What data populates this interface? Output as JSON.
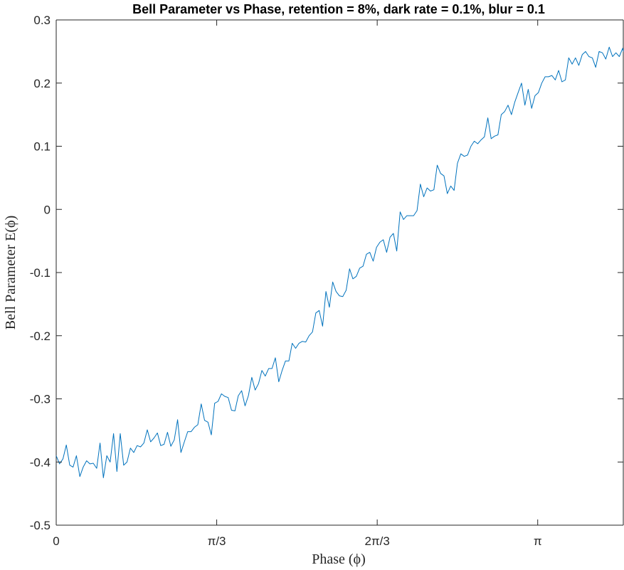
{
  "chart_data": {
    "type": "line",
    "title": "Bell Parameter vs Phase, retention = 8%, dark rate = 0.1%, blur = 0.1",
    "xlabel": "Phase (ϕ)",
    "ylabel": "Bell Parameter E(ϕ)",
    "xlim": [
      0,
      3.7
    ],
    "ylim": [
      -0.5,
      0.3
    ],
    "x_ticks": [
      {
        "value": 0,
        "label": "0"
      },
      {
        "value": 1.0472,
        "label": "π/3"
      },
      {
        "value": 2.0944,
        "label": "2π/3"
      },
      {
        "value": 3.1416,
        "label": "π"
      }
    ],
    "y_ticks": [
      {
        "value": 0.3,
        "label": "0.3"
      },
      {
        "value": 0.2,
        "label": "0.2"
      },
      {
        "value": 0.1,
        "label": "0.1"
      },
      {
        "value": 0,
        "label": "0"
      },
      {
        "value": -0.1,
        "label": "-0.1"
      },
      {
        "value": -0.2,
        "label": "-0.2"
      },
      {
        "value": -0.3,
        "label": "-0.3"
      },
      {
        "value": -0.4,
        "label": "-0.4"
      },
      {
        "value": -0.5,
        "label": "-0.5"
      }
    ],
    "grid": false,
    "series": [
      {
        "color": "#0072BD",
        "points": [
          [
            0.0,
            -0.39
          ],
          [
            0.022,
            -0.403
          ],
          [
            0.044,
            -0.395
          ],
          [
            0.066,
            -0.373
          ],
          [
            0.088,
            -0.405
          ],
          [
            0.11,
            -0.408
          ],
          [
            0.132,
            -0.39
          ],
          [
            0.154,
            -0.423
          ],
          [
            0.176,
            -0.408
          ],
          [
            0.198,
            -0.398
          ],
          [
            0.22,
            -0.403
          ],
          [
            0.242,
            -0.402
          ],
          [
            0.264,
            -0.41
          ],
          [
            0.286,
            -0.37
          ],
          [
            0.308,
            -0.425
          ],
          [
            0.33,
            -0.39
          ],
          [
            0.352,
            -0.4
          ],
          [
            0.374,
            -0.355
          ],
          [
            0.396,
            -0.415
          ],
          [
            0.418,
            -0.355
          ],
          [
            0.44,
            -0.405
          ],
          [
            0.462,
            -0.4
          ],
          [
            0.484,
            -0.378
          ],
          [
            0.506,
            -0.385
          ],
          [
            0.528,
            -0.374
          ],
          [
            0.55,
            -0.376
          ],
          [
            0.572,
            -0.37
          ],
          [
            0.594,
            -0.349
          ],
          [
            0.616,
            -0.368
          ],
          [
            0.638,
            -0.362
          ],
          [
            0.66,
            -0.354
          ],
          [
            0.682,
            -0.374
          ],
          [
            0.704,
            -0.372
          ],
          [
            0.726,
            -0.353
          ],
          [
            0.748,
            -0.375
          ],
          [
            0.77,
            -0.365
          ],
          [
            0.792,
            -0.333
          ],
          [
            0.814,
            -0.385
          ],
          [
            0.836,
            -0.368
          ],
          [
            0.858,
            -0.352
          ],
          [
            0.88,
            -0.352
          ],
          [
            0.902,
            -0.345
          ],
          [
            0.924,
            -0.341
          ],
          [
            0.946,
            -0.308
          ],
          [
            0.968,
            -0.334
          ],
          [
            0.99,
            -0.337
          ],
          [
            1.012,
            -0.357
          ],
          [
            1.034,
            -0.307
          ],
          [
            1.056,
            -0.304
          ],
          [
            1.078,
            -0.292
          ],
          [
            1.1,
            -0.296
          ],
          [
            1.122,
            -0.298
          ],
          [
            1.144,
            -0.318
          ],
          [
            1.166,
            -0.319
          ],
          [
            1.188,
            -0.295
          ],
          [
            1.21,
            -0.287
          ],
          [
            1.232,
            -0.311
          ],
          [
            1.254,
            -0.295
          ],
          [
            1.276,
            -0.266
          ],
          [
            1.298,
            -0.286
          ],
          [
            1.32,
            -0.276
          ],
          [
            1.342,
            -0.255
          ],
          [
            1.364,
            -0.264
          ],
          [
            1.386,
            -0.252
          ],
          [
            1.408,
            -0.252
          ],
          [
            1.43,
            -0.235
          ],
          [
            1.452,
            -0.273
          ],
          [
            1.474,
            -0.255
          ],
          [
            1.496,
            -0.24
          ],
          [
            1.518,
            -0.24
          ],
          [
            1.54,
            -0.212
          ],
          [
            1.562,
            -0.22
          ],
          [
            1.584,
            -0.212
          ],
          [
            1.606,
            -0.209
          ],
          [
            1.628,
            -0.21
          ],
          [
            1.65,
            -0.2
          ],
          [
            1.672,
            -0.194
          ],
          [
            1.694,
            -0.164
          ],
          [
            1.716,
            -0.16
          ],
          [
            1.738,
            -0.185
          ],
          [
            1.76,
            -0.13
          ],
          [
            1.782,
            -0.155
          ],
          [
            1.804,
            -0.115
          ],
          [
            1.826,
            -0.13
          ],
          [
            1.848,
            -0.137
          ],
          [
            1.87,
            -0.138
          ],
          [
            1.892,
            -0.128
          ],
          [
            1.914,
            -0.094
          ],
          [
            1.936,
            -0.11
          ],
          [
            1.958,
            -0.106
          ],
          [
            1.98,
            -0.093
          ],
          [
            2.002,
            -0.09
          ],
          [
            2.024,
            -0.071
          ],
          [
            2.046,
            -0.068
          ],
          [
            2.068,
            -0.082
          ],
          [
            2.09,
            -0.06
          ],
          [
            2.112,
            -0.052
          ],
          [
            2.134,
            -0.048
          ],
          [
            2.156,
            -0.068
          ],
          [
            2.178,
            -0.044
          ],
          [
            2.2,
            -0.038
          ],
          [
            2.222,
            -0.066
          ],
          [
            2.244,
            -0.004
          ],
          [
            2.266,
            -0.016
          ],
          [
            2.288,
            -0.01
          ],
          [
            2.31,
            -0.01
          ],
          [
            2.332,
            -0.01
          ],
          [
            2.354,
            -0.002
          ],
          [
            2.376,
            0.04
          ],
          [
            2.398,
            0.02
          ],
          [
            2.42,
            0.034
          ],
          [
            2.442,
            0.029
          ],
          [
            2.464,
            0.031
          ],
          [
            2.486,
            0.07
          ],
          [
            2.508,
            0.057
          ],
          [
            2.53,
            0.053
          ],
          [
            2.552,
            0.025
          ],
          [
            2.574,
            0.037
          ],
          [
            2.596,
            0.03
          ],
          [
            2.618,
            0.073
          ],
          [
            2.64,
            0.088
          ],
          [
            2.662,
            0.084
          ],
          [
            2.684,
            0.086
          ],
          [
            2.706,
            0.1
          ],
          [
            2.728,
            0.108
          ],
          [
            2.75,
            0.104
          ],
          [
            2.772,
            0.11
          ],
          [
            2.794,
            0.115
          ],
          [
            2.816,
            0.145
          ],
          [
            2.838,
            0.112
          ],
          [
            2.86,
            0.116
          ],
          [
            2.882,
            0.118
          ],
          [
            2.904,
            0.15
          ],
          [
            2.926,
            0.155
          ],
          [
            2.948,
            0.165
          ],
          [
            2.97,
            0.15
          ],
          [
            2.992,
            0.17
          ],
          [
            3.014,
            0.185
          ],
          [
            3.036,
            0.2
          ],
          [
            3.058,
            0.165
          ],
          [
            3.08,
            0.19
          ],
          [
            3.102,
            0.16
          ],
          [
            3.124,
            0.18
          ],
          [
            3.146,
            0.185
          ],
          [
            3.168,
            0.2
          ],
          [
            3.19,
            0.21
          ],
          [
            3.212,
            0.21
          ],
          [
            3.234,
            0.212
          ],
          [
            3.256,
            0.205
          ],
          [
            3.278,
            0.22
          ],
          [
            3.3,
            0.202
          ],
          [
            3.322,
            0.205
          ],
          [
            3.344,
            0.24
          ],
          [
            3.366,
            0.23
          ],
          [
            3.388,
            0.24
          ],
          [
            3.41,
            0.228
          ],
          [
            3.432,
            0.245
          ],
          [
            3.454,
            0.25
          ],
          [
            3.476,
            0.242
          ],
          [
            3.498,
            0.24
          ],
          [
            3.52,
            0.225
          ],
          [
            3.542,
            0.25
          ],
          [
            3.564,
            0.248
          ],
          [
            3.586,
            0.238
          ],
          [
            3.608,
            0.257
          ],
          [
            3.63,
            0.242
          ],
          [
            3.652,
            0.248
          ],
          [
            3.674,
            0.242
          ],
          [
            3.696,
            0.255
          ],
          [
            3.7,
            0.25
          ]
        ]
      }
    ]
  }
}
